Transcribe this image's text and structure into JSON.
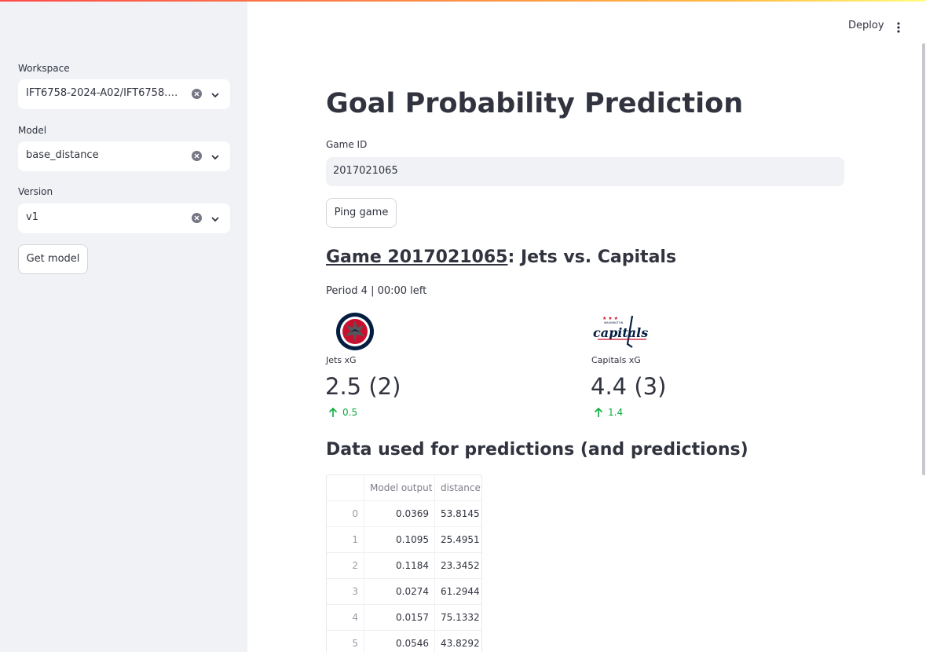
{
  "sidebar": {
    "workspace": {
      "label": "Workspace",
      "value": "IFT6758-2024-A02/IFT6758.2..."
    },
    "model": {
      "label": "Model",
      "value": "base_distance"
    },
    "version": {
      "label": "Version",
      "value": "v1"
    },
    "get_model_label": "Get model"
  },
  "header": {
    "deploy_label": "Deploy"
  },
  "main": {
    "title": "Goal Probability Prediction",
    "game_id_label": "Game ID",
    "game_id_value": "2017021065",
    "ping_label": "Ping game",
    "game_heading_link": "Game 2017021065",
    "game_heading_rest": ": Jets vs. Capitals",
    "period_text": "Period 4 | 00:00 left",
    "home": {
      "label": "Jets xG",
      "value": "2.5 (2)",
      "delta": "0.5",
      "logo": "winnipeg-jets-logo"
    },
    "away": {
      "label": "Capitals xG",
      "value": "4.4 (3)",
      "delta": "1.4",
      "logo": "washington-capitals-logo"
    },
    "data_heading": "Data used for predictions (and predictions)",
    "table": {
      "columns": [
        "",
        "Model output",
        "distance"
      ],
      "rows": [
        [
          "0",
          "0.0369",
          "53.8145"
        ],
        [
          "1",
          "0.1095",
          "25.4951"
        ],
        [
          "2",
          "0.1184",
          "23.3452"
        ],
        [
          "3",
          "0.0274",
          "61.2944"
        ],
        [
          "4",
          "0.0157",
          "75.1332"
        ],
        [
          "5",
          "0.0546",
          "43.8292"
        ]
      ]
    }
  },
  "colors": {
    "accent_red": "#ff4b4b",
    "delta_green": "#09ab3b",
    "sidebar_bg": "#f0f2f6"
  }
}
